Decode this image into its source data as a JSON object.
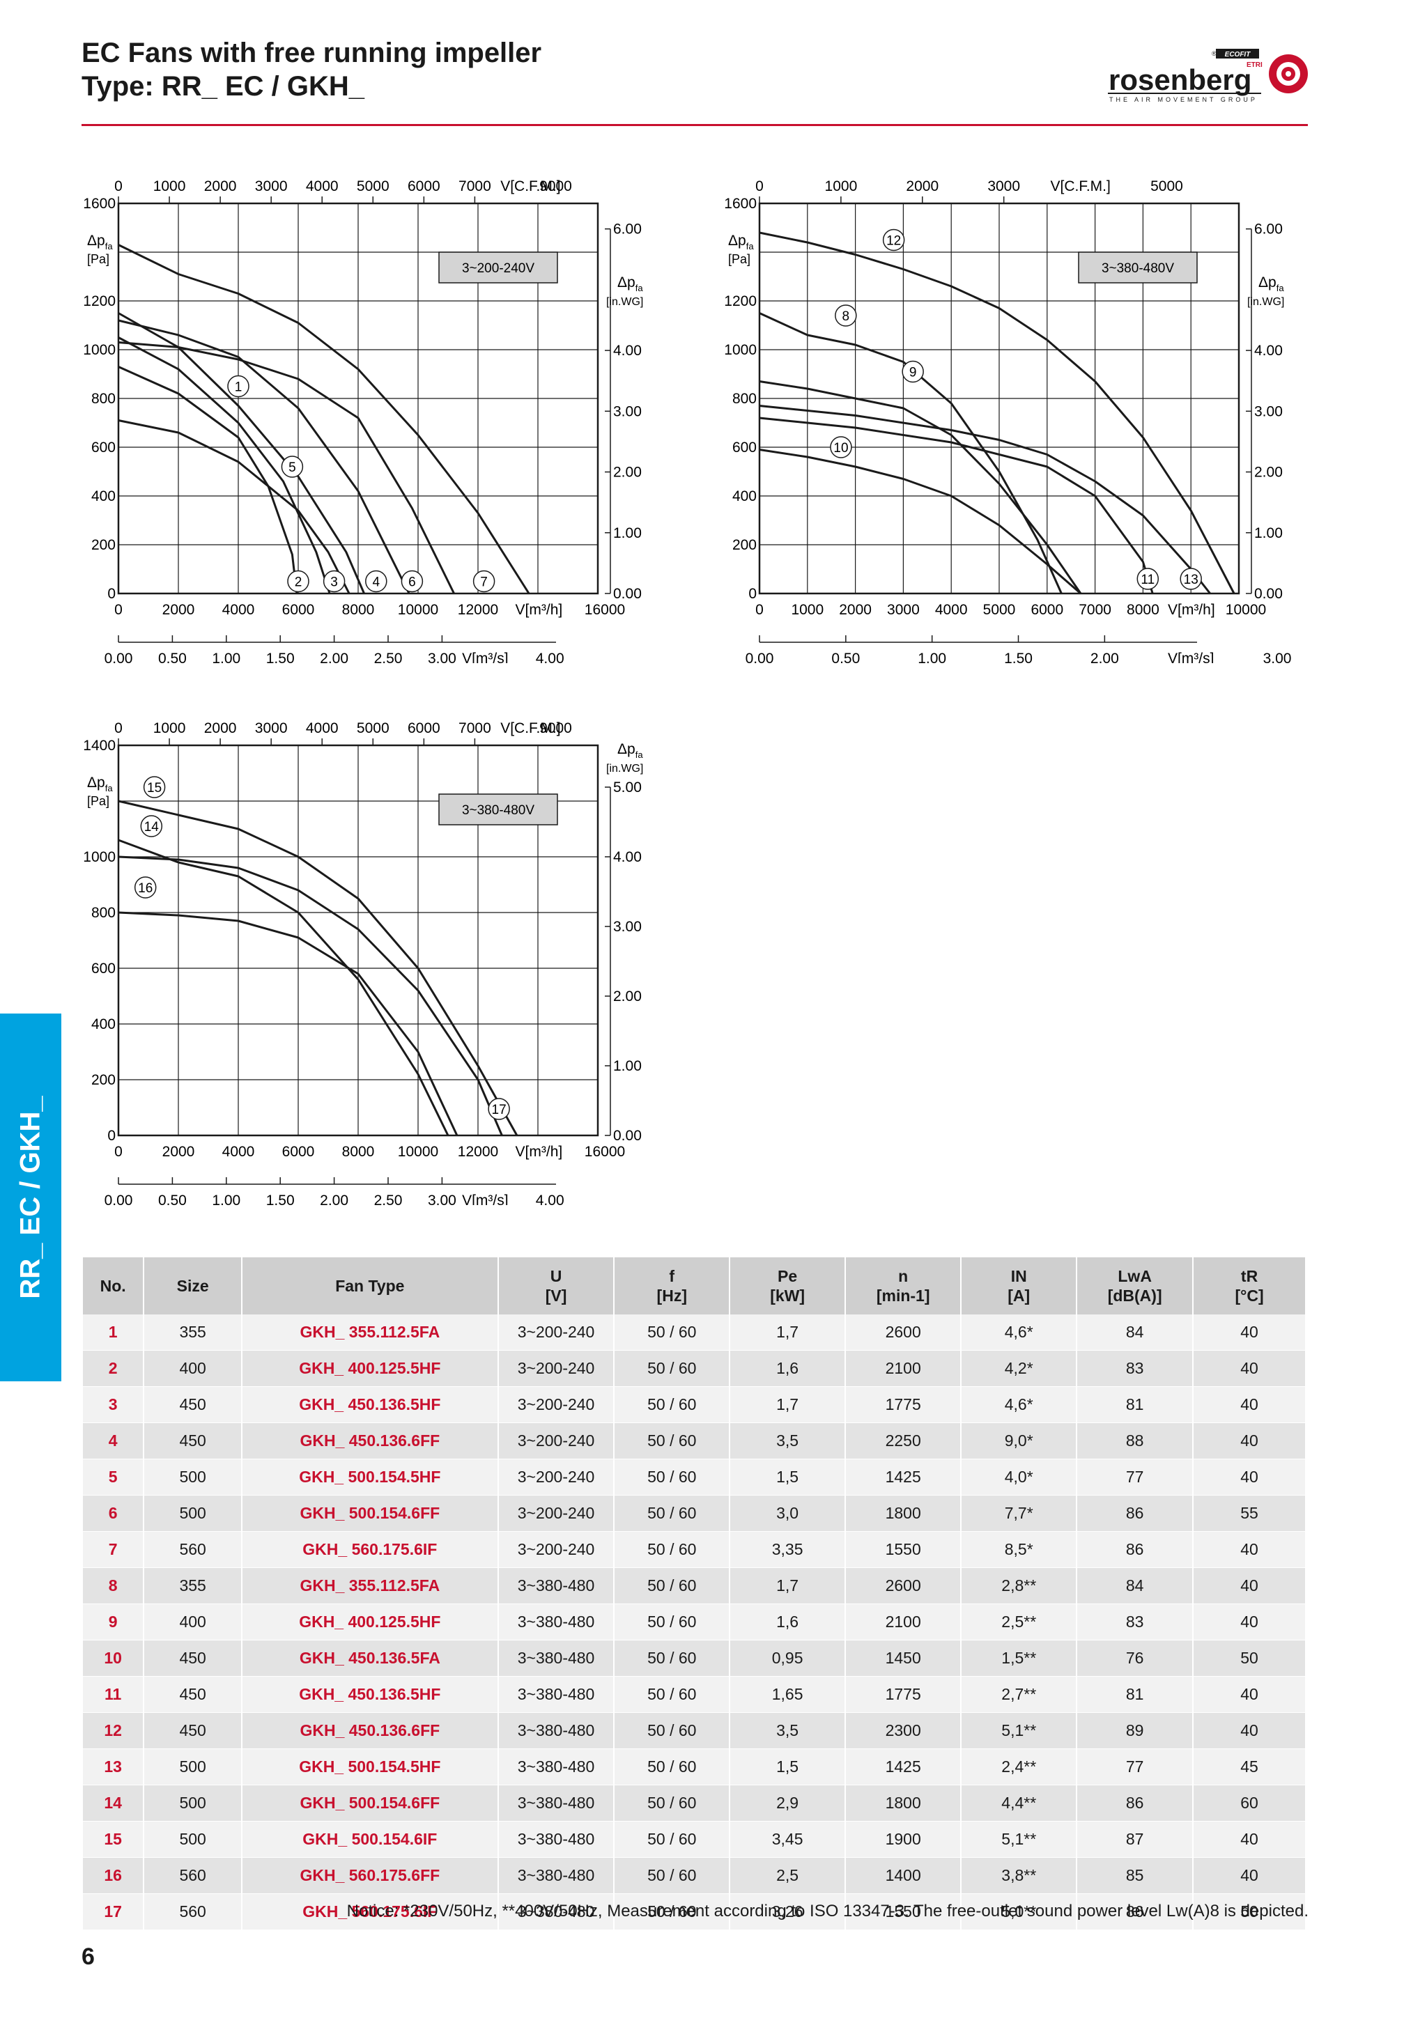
{
  "header": {
    "title_line1": "EC Fans with free running impeller",
    "title_line2": "Type: RR_ EC / GKH_",
    "brand": "rosenberg",
    "brand_tagline": "THE AIR MOVEMENT GROUP",
    "brand_badge_1": "ECOFIT",
    "brand_badge_2": "ETRI",
    "registered_mark": "®"
  },
  "side_tab": {
    "label": "RR_ EC / GKH_"
  },
  "charts": [
    {
      "voltage_label": "3~200-240V",
      "y_label_main": "Δp",
      "y_label_sub": "fa",
      "y_unit": "[Pa]",
      "y_label_right_unit": "[in.WG]",
      "y_ticks": [
        "0",
        "200",
        "400",
        "600",
        "800",
        "1000",
        "1200",
        "1600"
      ],
      "y_ticks_right": [
        "0.00",
        "1.00",
        "2.00",
        "3.00",
        "4.00",
        "6.00"
      ],
      "x_ticks_top": [
        "0",
        "1000",
        "2000",
        "3000",
        "4000",
        "5000",
        "6000",
        "7000"
      ],
      "x_top_unit": "V[C.F.M.]",
      "x_top_last": "9000",
      "x_ticks": [
        "0",
        "2000",
        "4000",
        "6000",
        "8000",
        "10000",
        "12000"
      ],
      "x_unit": "V[m³/h]",
      "x_last": "16000",
      "x_ticks_bottom": [
        "0.00",
        "0.50",
        "1.00",
        "1.50",
        "2.00",
        "2.50",
        "3.00"
      ],
      "x_bottom_unit": "V[m³/s]",
      "x_bottom_last": "4.00",
      "curve_labels": [
        "1",
        "2",
        "3",
        "4",
        "5",
        "6",
        "7"
      ]
    },
    {
      "voltage_label": "3~380-480V",
      "y_label_main": "Δp",
      "y_label_sub": "fa",
      "y_unit": "[Pa]",
      "y_label_right_unit": "[in.WG]",
      "y_ticks": [
        "0",
        "200",
        "400",
        "600",
        "800",
        "1000",
        "1200",
        "1600"
      ],
      "y_ticks_right": [
        "0.00",
        "1.00",
        "2.00",
        "3.00",
        "4.00",
        "6.00"
      ],
      "x_ticks_top": [
        "0",
        "1000",
        "2000",
        "3000"
      ],
      "x_top_unit": "V[C.F.M.]",
      "x_top_last": "5000",
      "x_ticks": [
        "0",
        "1000",
        "2000",
        "3000",
        "4000",
        "5000",
        "6000",
        "7000",
        "8000"
      ],
      "x_unit": "V[m³/h]",
      "x_last": "10000",
      "x_ticks_bottom": [
        "0.00",
        "0.50",
        "1.00",
        "1.50",
        "2.00"
      ],
      "x_bottom_unit": "V[m³/s]",
      "x_bottom_last": "3.00",
      "curve_labels": [
        "8",
        "9",
        "10",
        "11",
        "12",
        "13"
      ]
    },
    {
      "voltage_label": "3~380-480V",
      "y_label_main": "Δp",
      "y_label_sub": "fa",
      "y_unit": "[Pa]",
      "y_label_right_unit": "[in.WG]",
      "y_ticks": [
        "0",
        "200",
        "400",
        "600",
        "800",
        "1000",
        "1400"
      ],
      "y_ticks_right": [
        "0.00",
        "1.00",
        "2.00",
        "3.00",
        "4.00",
        "5.00"
      ],
      "x_ticks_top": [
        "0",
        "1000",
        "2000",
        "3000",
        "4000",
        "5000",
        "6000",
        "7000"
      ],
      "x_top_unit": "V[C.F.M.]",
      "x_top_last": "9000",
      "x_ticks": [
        "0",
        "2000",
        "4000",
        "6000",
        "8000",
        "10000",
        "12000"
      ],
      "x_unit": "V[m³/h]",
      "x_last": "16000",
      "x_ticks_bottom": [
        "0.00",
        "0.50",
        "1.00",
        "1.50",
        "2.00",
        "2.50",
        "3.00"
      ],
      "x_bottom_unit": "V[m³/s]",
      "x_bottom_last": "4.00",
      "curve_labels": [
        "14",
        "15",
        "16",
        "17"
      ]
    }
  ],
  "chart_data": [
    {
      "type": "line",
      "title": "",
      "xlabel": "V[m³/h]",
      "ylabel": "Δpfa [Pa]",
      "xlim": [
        0,
        16000
      ],
      "ylim": [
        0,
        1600
      ],
      "series": [
        {
          "name": "1",
          "x": [
            0,
            2000,
            4000,
            5000,
            5800,
            5950
          ],
          "y": [
            930,
            820,
            640,
            440,
            160,
            0
          ]
        },
        {
          "name": "2",
          "x": [
            0,
            2000,
            4000,
            5500,
            6600,
            7050
          ],
          "y": [
            1050,
            920,
            700,
            460,
            170,
            0
          ]
        },
        {
          "name": "3",
          "x": [
            0,
            2000,
            4000,
            6000,
            7600,
            8200
          ],
          "y": [
            1150,
            1010,
            770,
            480,
            170,
            0
          ]
        },
        {
          "name": "4",
          "x": [
            0,
            2000,
            4000,
            6000,
            8000,
            9700
          ],
          "y": [
            1120,
            1060,
            970,
            760,
            420,
            0
          ]
        },
        {
          "name": "5",
          "x": [
            0,
            2000,
            4000,
            6000,
            7000,
            7700
          ],
          "y": [
            710,
            660,
            540,
            340,
            170,
            0
          ]
        },
        {
          "name": "6",
          "x": [
            0,
            2000,
            4000,
            6000,
            8000,
            9800,
            11200
          ],
          "y": [
            1030,
            1010,
            960,
            880,
            720,
            350,
            0
          ]
        },
        {
          "name": "7",
          "x": [
            0,
            2000,
            4000,
            6000,
            8000,
            10000,
            12000,
            13700
          ],
          "y": [
            1430,
            1310,
            1230,
            1110,
            920,
            650,
            330,
            0
          ]
        }
      ]
    },
    {
      "type": "line",
      "title": "",
      "xlabel": "V[m³/h]",
      "ylabel": "Δpfa [Pa]",
      "xlim": [
        0,
        10000
      ],
      "ylim": [
        0,
        1600
      ],
      "series": [
        {
          "name": "8",
          "x": [
            0,
            1000,
            2000,
            3000,
            4000,
            5000,
            5800,
            6300
          ],
          "y": [
            1150,
            1060,
            1020,
            950,
            780,
            500,
            220,
            0
          ]
        },
        {
          "name": "9",
          "x": [
            0,
            1000,
            2000,
            3000,
            4000,
            5000,
            6000,
            6700
          ],
          "y": [
            870,
            840,
            800,
            760,
            650,
            450,
            200,
            0
          ]
        },
        {
          "name": "10",
          "x": [
            0,
            1000,
            2000,
            3000,
            4000,
            5000,
            6000,
            6700
          ],
          "y": [
            590,
            560,
            520,
            470,
            400,
            280,
            120,
            0
          ]
        },
        {
          "name": "11",
          "x": [
            0,
            2000,
            4000,
            6000,
            7000,
            8000,
            8200
          ],
          "y": [
            720,
            680,
            620,
            520,
            400,
            130,
            0
          ]
        },
        {
          "name": "12",
          "x": [
            0,
            1000,
            2000,
            3000,
            4000,
            5000,
            6000,
            7000,
            8000,
            9000,
            9900
          ],
          "y": [
            1480,
            1440,
            1390,
            1330,
            1260,
            1170,
            1040,
            870,
            640,
            340,
            0
          ]
        },
        {
          "name": "13",
          "x": [
            0,
            2000,
            4000,
            5000,
            6000,
            7000,
            8000,
            9000,
            9400
          ],
          "y": [
            770,
            730,
            670,
            630,
            570,
            460,
            320,
            100,
            0
          ]
        }
      ]
    },
    {
      "type": "line",
      "title": "",
      "xlabel": "V[m³/h]",
      "ylabel": "Δpfa [Pa]",
      "xlim": [
        0,
        16000
      ],
      "ylim": [
        0,
        1400
      ],
      "series": [
        {
          "name": "14",
          "x": [
            0,
            2000,
            4000,
            6000,
            8000,
            10000,
            11000
          ],
          "y": [
            1060,
            980,
            930,
            800,
            560,
            220,
            0
          ]
        },
        {
          "name": "15",
          "x": [
            0,
            2000,
            4000,
            6000,
            8000,
            10000,
            12000,
            13300
          ],
          "y": [
            1200,
            1150,
            1100,
            1000,
            850,
            600,
            250,
            0
          ]
        },
        {
          "name": "16",
          "x": [
            0,
            2000,
            4000,
            6000,
            8000,
            10000,
            11300
          ],
          "y": [
            800,
            790,
            770,
            710,
            580,
            300,
            0
          ]
        },
        {
          "name": "17",
          "x": [
            0,
            2000,
            4000,
            6000,
            8000,
            10000,
            12000,
            12800
          ],
          "y": [
            1000,
            990,
            960,
            880,
            740,
            520,
            200,
            0
          ]
        }
      ]
    }
  ],
  "table": {
    "headers": [
      {
        "main": "No.",
        "sub": ""
      },
      {
        "main": "Size",
        "sub": ""
      },
      {
        "main": "Fan Type",
        "sub": ""
      },
      {
        "main": "U",
        "sub": "[V]"
      },
      {
        "main": "f",
        "sub": "[Hz]"
      },
      {
        "main": "Pe",
        "sub": "[kW]"
      },
      {
        "main": "n",
        "sub": "[min-1]"
      },
      {
        "main": "IN",
        "sub": "[A]"
      },
      {
        "main": "LwA",
        "sub": "[dB(A)]"
      },
      {
        "main": "tR",
        "sub": "[°C]"
      }
    ],
    "rows": [
      [
        "1",
        "355",
        "GKH_ 355.112.5FA",
        "3~200-240",
        "50 / 60",
        "1,7",
        "2600",
        "4,6*",
        "84",
        "40"
      ],
      [
        "2",
        "400",
        "GKH_ 400.125.5HF",
        "3~200-240",
        "50 / 60",
        "1,6",
        "2100",
        "4,2*",
        "83",
        "40"
      ],
      [
        "3",
        "450",
        "GKH_ 450.136.5HF",
        "3~200-240",
        "50 / 60",
        "1,7",
        "1775",
        "4,6*",
        "81",
        "40"
      ],
      [
        "4",
        "450",
        "GKH_ 450.136.6FF",
        "3~200-240",
        "50 / 60",
        "3,5",
        "2250",
        "9,0*",
        "88",
        "40"
      ],
      [
        "5",
        "500",
        "GKH_ 500.154.5HF",
        "3~200-240",
        "50 / 60",
        "1,5",
        "1425",
        "4,0*",
        "77",
        "40"
      ],
      [
        "6",
        "500",
        "GKH_ 500.154.6FF",
        "3~200-240",
        "50 / 60",
        "3,0",
        "1800",
        "7,7*",
        "86",
        "55"
      ],
      [
        "7",
        "560",
        "GKH_ 560.175.6IF",
        "3~200-240",
        "50 / 60",
        "3,35",
        "1550",
        "8,5*",
        "86",
        "40"
      ],
      [
        "8",
        "355",
        "GKH_ 355.112.5FA",
        "3~380-480",
        "50 / 60",
        "1,7",
        "2600",
        "2,8**",
        "84",
        "40"
      ],
      [
        "9",
        "400",
        "GKH_ 400.125.5HF",
        "3~380-480",
        "50 / 60",
        "1,6",
        "2100",
        "2,5**",
        "83",
        "40"
      ],
      [
        "10",
        "450",
        "GKH_ 450.136.5FA",
        "3~380-480",
        "50 / 60",
        "0,95",
        "1450",
        "1,5**",
        "76",
        "50"
      ],
      [
        "11",
        "450",
        "GKH_ 450.136.5HF",
        "3~380-480",
        "50 / 60",
        "1,65",
        "1775",
        "2,7**",
        "81",
        "40"
      ],
      [
        "12",
        "450",
        "GKH_ 450.136.6FF",
        "3~380-480",
        "50 / 60",
        "3,5",
        "2300",
        "5,1**",
        "89",
        "40"
      ],
      [
        "13",
        "500",
        "GKH_ 500.154.5HF",
        "3~380-480",
        "50 / 60",
        "1,5",
        "1425",
        "2,4**",
        "77",
        "45"
      ],
      [
        "14",
        "500",
        "GKH_ 500.154.6FF",
        "3~380-480",
        "50 / 60",
        "2,9",
        "1800",
        "4,4**",
        "86",
        "60"
      ],
      [
        "15",
        "500",
        "GKH_ 500.154.6IF",
        "3~380-480",
        "50 / 60",
        "3,45",
        "1900",
        "5,1**",
        "87",
        "40"
      ],
      [
        "16",
        "560",
        "GKH_ 560.175.6FF",
        "3~380-480",
        "50 / 60",
        "2,5",
        "1400",
        "3,8**",
        "85",
        "40"
      ],
      [
        "17",
        "560",
        "GKH_ 560.175.6IF",
        "3~380-480",
        "50 / 60",
        "3,26",
        "1550",
        "5,0**",
        "86",
        "50"
      ]
    ]
  },
  "notice": "Notice: *230V/50Hz, **400V/50Hz, Measurement according to ISO 13347-3. The free-outlet sound power level Lw(A)8 is depicted.",
  "page_number": "6",
  "colors": {
    "accent_red": "#c8102e",
    "tab_blue": "#00a3e0",
    "header_gray": "#cfcfcf"
  }
}
